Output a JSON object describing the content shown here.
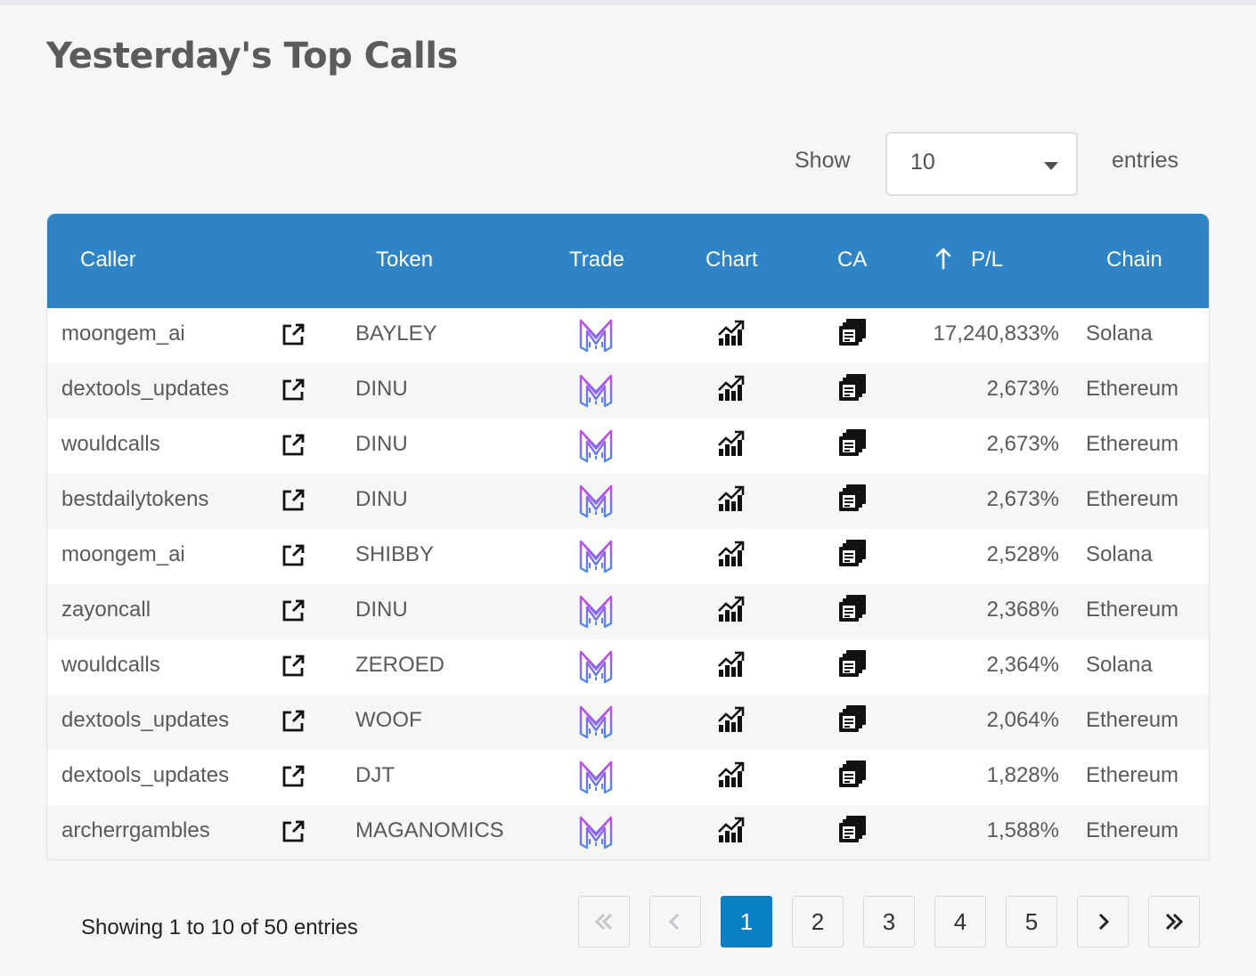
{
  "page": {
    "title": "Yesterday's Top Calls"
  },
  "length_menu": {
    "show_label": "Show",
    "selected": "10",
    "entries_label": "entries"
  },
  "table": {
    "columns": [
      "Caller",
      "Token",
      "Trade",
      "Chart",
      "CA",
      "P/L",
      "Chain"
    ],
    "sort": {
      "column": "P/L",
      "direction": "descending",
      "icon": "arrow-up-icon"
    },
    "rows": [
      {
        "caller": "moongem_ai",
        "token": "BAYLEY",
        "pl": "17,240,833%",
        "chain": "Solana"
      },
      {
        "caller": "dextools_updates",
        "token": "DINU",
        "pl": "2,673%",
        "chain": "Ethereum"
      },
      {
        "caller": "wouldcalls",
        "token": "DINU",
        "pl": "2,673%",
        "chain": "Ethereum"
      },
      {
        "caller": "bestdailytokens",
        "token": "DINU",
        "pl": "2,673%",
        "chain": "Ethereum"
      },
      {
        "caller": "moongem_ai",
        "token": "SHIBBY",
        "pl": "2,528%",
        "chain": "Solana"
      },
      {
        "caller": "zayoncall",
        "token": "DINU",
        "pl": "2,368%",
        "chain": "Ethereum"
      },
      {
        "caller": "wouldcalls",
        "token": "ZEROED",
        "pl": "2,364%",
        "chain": "Solana"
      },
      {
        "caller": "dextools_updates",
        "token": "WOOF",
        "pl": "2,064%",
        "chain": "Ethereum"
      },
      {
        "caller": "dextools_updates",
        "token": "DJT",
        "pl": "1,828%",
        "chain": "Ethereum"
      },
      {
        "caller": "archerrgambles",
        "token": "MAGANOMICS",
        "pl": "1,588%",
        "chain": "Ethereum"
      }
    ],
    "row_icons": {
      "caller_link": "external-link-icon",
      "trade": "trade-bot-logo-icon",
      "chart": "chart-icon",
      "ca": "copy-icon"
    }
  },
  "footer": {
    "info": "Showing 1 to 10 of 50 entries",
    "pages": [
      "1",
      "2",
      "3",
      "4",
      "5"
    ],
    "current_page": "1",
    "nav_icons": [
      "first-page-icon",
      "previous-page-icon",
      "next-page-icon",
      "last-page-icon"
    ]
  },
  "colors": {
    "header_bg": "#2e84c4",
    "active_page": "#0b7fc4",
    "trade_logo": "#b14fe6"
  }
}
